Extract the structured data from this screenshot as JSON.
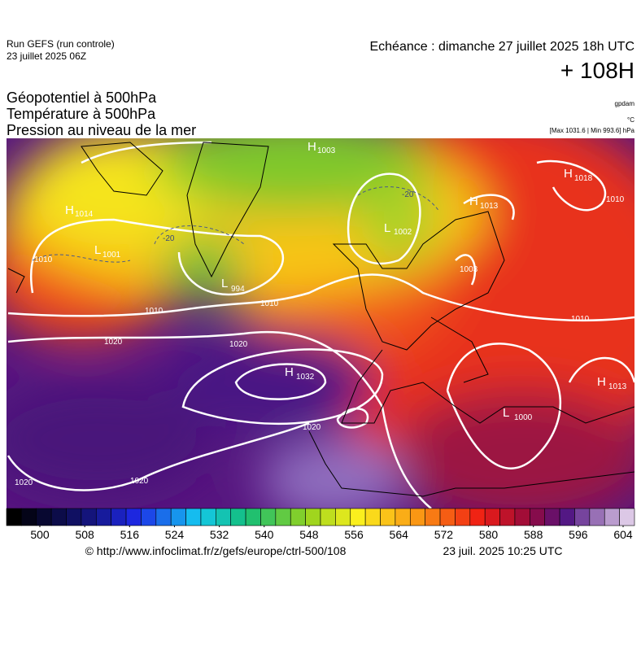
{
  "header": {
    "run": "Run GEFS (run controle)",
    "run_date": "23 juillet 2025 06Z",
    "echeance": "Echéance : dimanche 27 juillet 2025 18h UTC",
    "lead": "+ 108H",
    "titles": [
      "Géopotentiel à 500hPa",
      "Température à 500hPa",
      "Pression au niveau de la mer"
    ],
    "units": [
      "gpdam",
      "°C"
    ],
    "range": "[Max 1031.6 | Min 993.6] hPa"
  },
  "map": {
    "centers": [
      {
        "symbol": "H",
        "value": 1003
      },
      {
        "symbol": "H",
        "value": 1014
      },
      {
        "symbol": "L",
        "value": 1001
      },
      {
        "symbol": "L",
        "value": 994
      },
      {
        "symbol": "L",
        "value": 1002
      },
      {
        "symbol": "H",
        "value": 1013
      },
      {
        "symbol": "H",
        "value": 1018
      },
      {
        "symbol": "L",
        "value": 1003
      },
      {
        "symbol": "H",
        "value": 1032
      },
      {
        "symbol": "H",
        "value": 1013
      },
      {
        "symbol": "L",
        "value": 1000
      }
    ],
    "isobar_labels": [
      1010,
      1010,
      1010,
      1010,
      1010,
      1020,
      1020,
      1020,
      1020,
      1020
    ],
    "temperature_labels": [
      -20,
      -20
    ]
  },
  "colorbar": {
    "ticks": [
      500,
      508,
      516,
      524,
      532,
      540,
      548,
      556,
      564,
      572,
      580,
      588,
      596,
      604
    ]
  },
  "footer": {
    "source": "© http://www.infoclimat.fr/z/gefs/europe/ctrl-500/108",
    "generated": "23 juil. 2025 10:25 UTC"
  }
}
